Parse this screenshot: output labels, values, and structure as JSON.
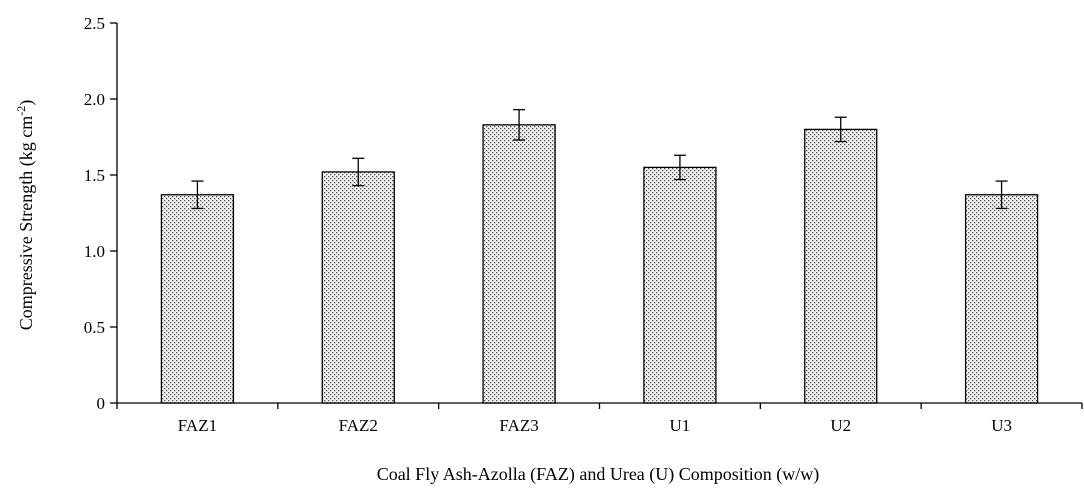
{
  "chart_data": {
    "type": "bar",
    "title": "",
    "xlabel": "Coal Fly Ash-Azolla (FAZ) and Urea (U) Composition (w/w)",
    "ylabel_main": "Compressive Strength (kg cm",
    "ylabel_sup": "-2",
    "ylabel_end": ")",
    "categories": [
      "FAZ1",
      "FAZ2",
      "FAZ3",
      "U1",
      "U2",
      "U3"
    ],
    "values": [
      1.37,
      1.52,
      1.83,
      1.55,
      1.8,
      1.37
    ],
    "errors": [
      0.09,
      0.09,
      0.1,
      0.08,
      0.08,
      0.09
    ],
    "ylim": [
      0,
      2.5
    ],
    "yticks": [
      0,
      0.5,
      1.0,
      1.5,
      2.0,
      2.5
    ],
    "ytick_labels": [
      "0",
      "0.5",
      "1.0",
      "1.5",
      "2.0",
      "2.5"
    ],
    "grid": false,
    "bar_pattern": "stippled"
  }
}
